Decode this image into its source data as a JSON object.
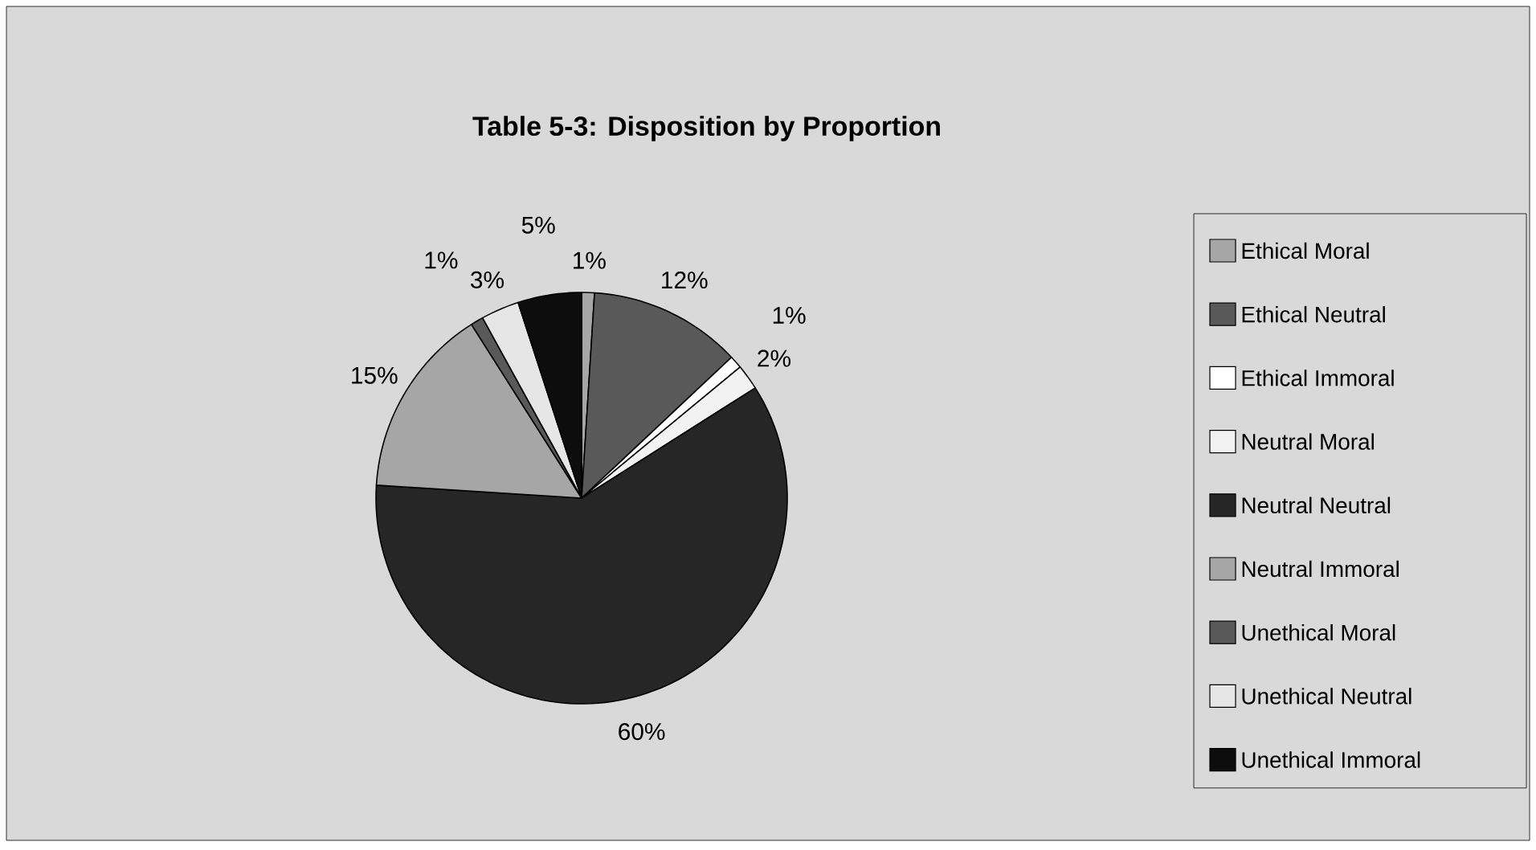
{
  "chart_data": {
    "type": "pie",
    "title": "Table 5-3: Disposition by Proportion",
    "categories": [
      "Ethical Moral",
      "Ethical Neutral",
      "Ethical Immoral",
      "Neutral Moral",
      "Neutral Neutral",
      "Neutral Immoral",
      "Unethical Moral",
      "Unethical Neutral",
      "Unethical Immoral"
    ],
    "values": [
      1,
      12,
      1,
      2,
      60,
      15,
      1,
      3,
      5
    ],
    "value_labels": [
      "1%",
      "12%",
      "1%",
      "2%",
      "60%",
      "15%",
      "1%",
      "3%",
      "5%"
    ],
    "colors": [
      "#a6a6a6",
      "#595959",
      "#ffffff",
      "#f2f2f2",
      "#262626",
      "#a6a6a6",
      "#595959",
      "#e6e6e6",
      "#0d0d0d"
    ],
    "legend": "right"
  }
}
